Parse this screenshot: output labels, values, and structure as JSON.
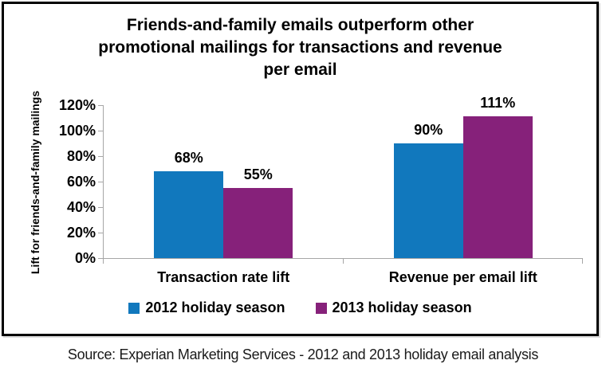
{
  "chart_data": {
    "type": "bar",
    "title": "Friends-and-family emails outperform other promotional mailings for transactions and revenue per email",
    "title_lines": [
      "Friends-and-family emails outperform other",
      "promotional mailings for transactions and revenue",
      "per email"
    ],
    "ylabel": "Lift for friends-and-family mailings",
    "xlabel": "",
    "categories": [
      "Transaction rate lift",
      "Revenue per email lift"
    ],
    "series": [
      {
        "name": "2012 holiday season",
        "color": "#1178BD",
        "values": [
          68,
          90
        ],
        "data_labels": [
          "68%",
          "90%"
        ]
      },
      {
        "name": "2013 holiday season",
        "color": "#86217A",
        "values": [
          55,
          111
        ],
        "data_labels": [
          "55%",
          "111%"
        ]
      }
    ],
    "ylim": [
      0,
      120
    ],
    "ytick_step": 20,
    "ytick_labels": [
      "0%",
      "20%",
      "40%",
      "60%",
      "80%",
      "100%",
      "120%"
    ],
    "grid": false,
    "legend_position": "bottom",
    "axis_color": "#a6a6a6"
  },
  "source_note": "Source: Experian Marketing Services - 2012 and 2013 holiday email analysis"
}
